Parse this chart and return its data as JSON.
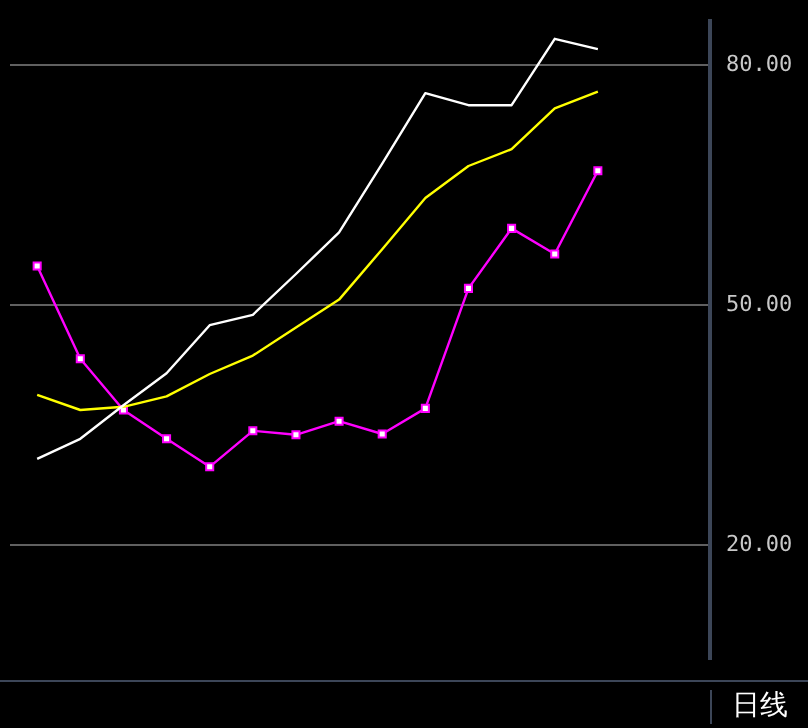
{
  "chart_data": {
    "type": "line",
    "categories": [
      null,
      null,
      null,
      null,
      null,
      null,
      null,
      null,
      null,
      null,
      null,
      null,
      null,
      null
    ],
    "series": [
      {
        "color": "#ffffff",
        "values": [
          30.8,
          33.3,
          37.5,
          41.5,
          47.5,
          48.8,
          53.9,
          59.1,
          67.7,
          76.5,
          75.0,
          75.0,
          83.3,
          82.0
        ]
      },
      {
        "color": "#ffff00",
        "values": [
          38.8,
          36.9,
          37.3,
          38.6,
          41.4,
          43.7,
          47.2,
          50.7,
          57.0,
          63.4,
          67.4,
          69.5,
          74.6,
          76.7
        ]
      },
      {
        "color": "#ff00ff",
        "marker": "square",
        "values": [
          54.9,
          43.3,
          36.9,
          33.3,
          29.8,
          34.3,
          33.8,
          35.5,
          33.9,
          37.1,
          52.1,
          59.6,
          56.4,
          66.8
        ]
      }
    ],
    "ylim": [
      5.8,
      85.5
    ],
    "yticks": [
      {
        "value": 20,
        "label": "20.00"
      },
      {
        "value": 50,
        "label": "50.00"
      },
      {
        "value": 80,
        "label": "80.00"
      }
    ],
    "grid": "y",
    "legend": false,
    "tick_labels": "y",
    "annotations": [
      "日线"
    ]
  }
}
